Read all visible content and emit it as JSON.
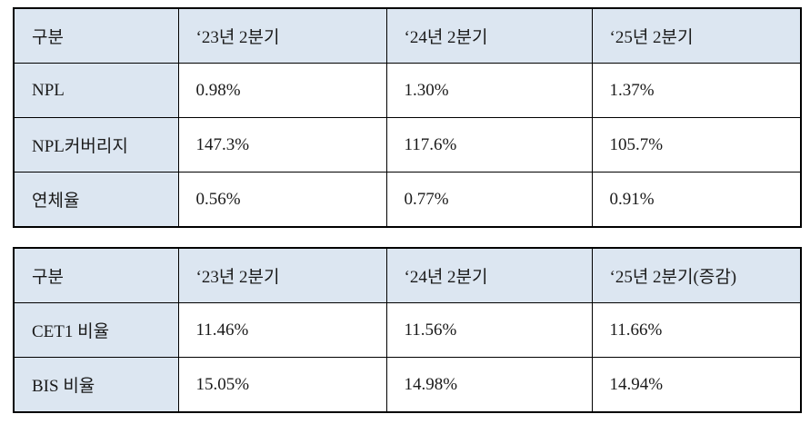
{
  "colors": {
    "header_bg": "#dce6f1",
    "cell_bg": "#ffffff",
    "border": "#000000",
    "text": "#1a1a1a"
  },
  "asset_quality_table": {
    "headers": [
      "구분",
      "‘23년 2분기",
      "‘24년 2분기",
      "‘25년 2분기"
    ],
    "rows": [
      {
        "label": "NPL",
        "values": [
          "0.98%",
          "1.30%",
          "1.37%"
        ]
      },
      {
        "label": "NPL커버리지",
        "values": [
          "147.3%",
          "117.6%",
          "105.7%"
        ]
      },
      {
        "label": "연체율",
        "values": [
          "0.56%",
          "0.77%",
          "0.91%"
        ]
      }
    ]
  },
  "capital_ratio_table": {
    "headers": [
      "구분",
      "‘23년 2분기",
      "‘24년 2분기",
      "‘25년 2분기(증감)"
    ],
    "rows": [
      {
        "label": "CET1 비율",
        "values": [
          "11.46%",
          "11.56%",
          "11.66%"
        ]
      },
      {
        "label": "BIS 비율",
        "values": [
          "15.05%",
          "14.98%",
          "14.94%"
        ]
      }
    ]
  }
}
